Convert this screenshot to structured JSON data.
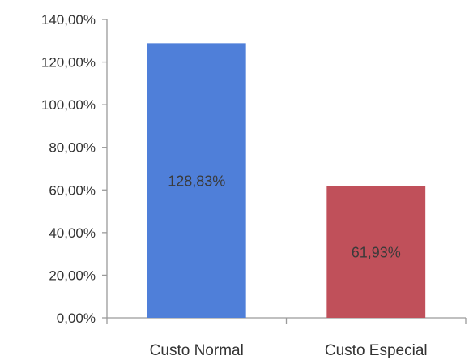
{
  "chart_data": {
    "type": "bar",
    "title": "",
    "xlabel": "",
    "ylabel": "",
    "categories": [
      "Custo Normal",
      "Custo Especial"
    ],
    "values": [
      128.83,
      61.93
    ],
    "value_labels": [
      "128,83%",
      "61,93%"
    ],
    "bar_colors": [
      "#4f7fd9",
      "#c0505a"
    ],
    "ylim": [
      0,
      140
    ],
    "yticks": [
      0,
      20,
      40,
      60,
      80,
      100,
      120,
      140
    ],
    "ytick_labels": [
      "0,00%",
      "20,00%",
      "40,00%",
      "60,00%",
      "80,00%",
      "100,00%",
      "120,00%",
      "140,00%"
    ],
    "grid": false,
    "legend": "none"
  }
}
